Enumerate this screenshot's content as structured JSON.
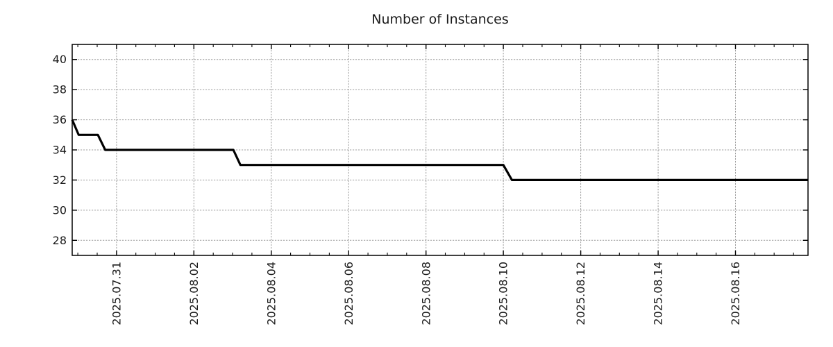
{
  "page": {
    "background": "#ffffff"
  },
  "chart_data": {
    "type": "line",
    "title": "Number of Instances",
    "x_type": "datetime",
    "xlabel": "",
    "ylabel": "",
    "xlim": [
      "2025-07-29T20:30:00",
      "2025-08-17T21:00:00"
    ],
    "ylim": [
      27,
      41
    ],
    "y_ticks": [
      28,
      30,
      32,
      34,
      36,
      38,
      40
    ],
    "x_major_ticks": [
      {
        "value": "2025-07-31T00:00:00",
        "label": "2025.07.31"
      },
      {
        "value": "2025-08-02T00:00:00",
        "label": "2025.08.02"
      },
      {
        "value": "2025-08-04T00:00:00",
        "label": "2025.08.04"
      },
      {
        "value": "2025-08-06T00:00:00",
        "label": "2025.08.06"
      },
      {
        "value": "2025-08-08T00:00:00",
        "label": "2025.08.08"
      },
      {
        "value": "2025-08-10T00:00:00",
        "label": "2025.08.10"
      },
      {
        "value": "2025-08-12T00:00:00",
        "label": "2025.08.12"
      },
      {
        "value": "2025-08-14T00:00:00",
        "label": "2025.08.14"
      },
      {
        "value": "2025-08-16T00:00:00",
        "label": "2025.08.16"
      }
    ],
    "x_minor_tick_interval_hours": 12,
    "grid": {
      "show": true,
      "color": "#9e9e9e"
    },
    "legend": {
      "show": false
    },
    "colors": {
      "line": "#000000",
      "frame": "#000000",
      "text": "#1a1a1a"
    },
    "series": [
      {
        "name": "instances",
        "color": "#000000",
        "points": [
          [
            "2025-07-29T20:30:00",
            36
          ],
          [
            "2025-07-30T00:30:00",
            35
          ],
          [
            "2025-07-30T12:25:00",
            35
          ],
          [
            "2025-07-30T17:00:00",
            34
          ],
          [
            "2025-08-03T00:30:00",
            34
          ],
          [
            "2025-08-03T04:50:00",
            33
          ],
          [
            "2025-08-10T00:00:00",
            33
          ],
          [
            "2025-08-10T05:20:00",
            32
          ],
          [
            "2025-08-17T21:00:00",
            32
          ]
        ]
      }
    ]
  }
}
